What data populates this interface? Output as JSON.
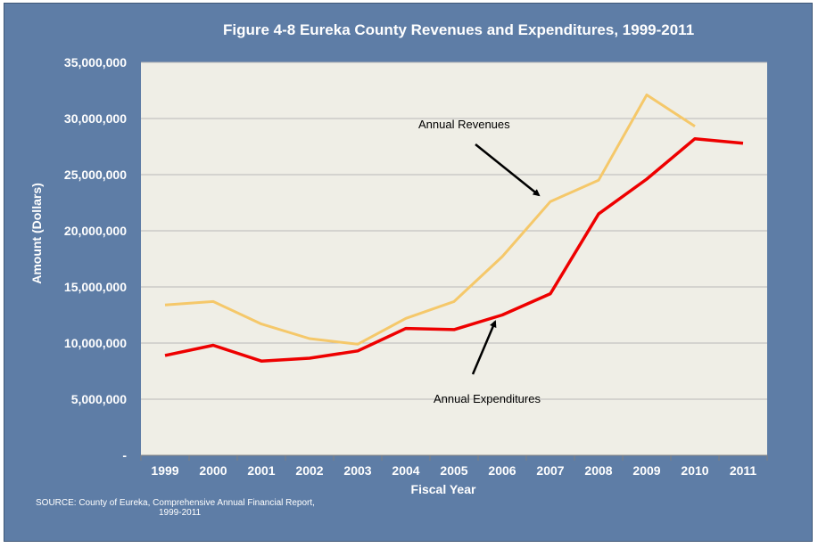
{
  "chart_data": {
    "type": "line",
    "title": "Figure 4-8 Eureka County Revenues and Expenditures, 1999-2011",
    "xlabel": "Fiscal Year",
    "ylabel": "Amount (Dollars)",
    "ylim": [
      0,
      35000000
    ],
    "yticks": [
      0,
      5000000,
      10000000,
      15000000,
      20000000,
      25000000,
      30000000,
      35000000
    ],
    "ytick_labels": [
      "-",
      "5,000,000",
      "10,000,000",
      "15,000,000",
      "20,000,000",
      "25,000,000",
      "30,000,000",
      "35,000,000"
    ],
    "categories": [
      "1999",
      "2000",
      "2001",
      "2002",
      "2003",
      "2004",
      "2005",
      "2006",
      "2007",
      "2008",
      "2009",
      "2010",
      "2011"
    ],
    "series": [
      {
        "name": "Annual Revenues",
        "color": "#f5c86a",
        "values": [
          13400000,
          13700000,
          11700000,
          10400000,
          9900000,
          12200000,
          13700000,
          17700000,
          22600000,
          24500000,
          32100000,
          29300000,
          null
        ]
      },
      {
        "name": "Annual Expenditures",
        "color": "#ee0000",
        "values": [
          8900000,
          9800000,
          8400000,
          8650000,
          9300000,
          11300000,
          11200000,
          12500000,
          14400000,
          21500000,
          24600000,
          28200000,
          27800000
        ]
      }
    ],
    "annotations": [
      {
        "text": "Annual Revenues",
        "target": "Annual Revenues"
      },
      {
        "text": "Annual Expenditures",
        "target": "Annual Expenditures"
      }
    ],
    "grid": true,
    "legend": "none"
  },
  "source": {
    "line1": "SOURCE: County of Eureka, Comprehensive Annual Financial Report,",
    "line2": "1999-2011"
  },
  "colors": {
    "background": "#5e7da6",
    "plot_area": "#efeee6",
    "grid": "#b8b8b8"
  }
}
